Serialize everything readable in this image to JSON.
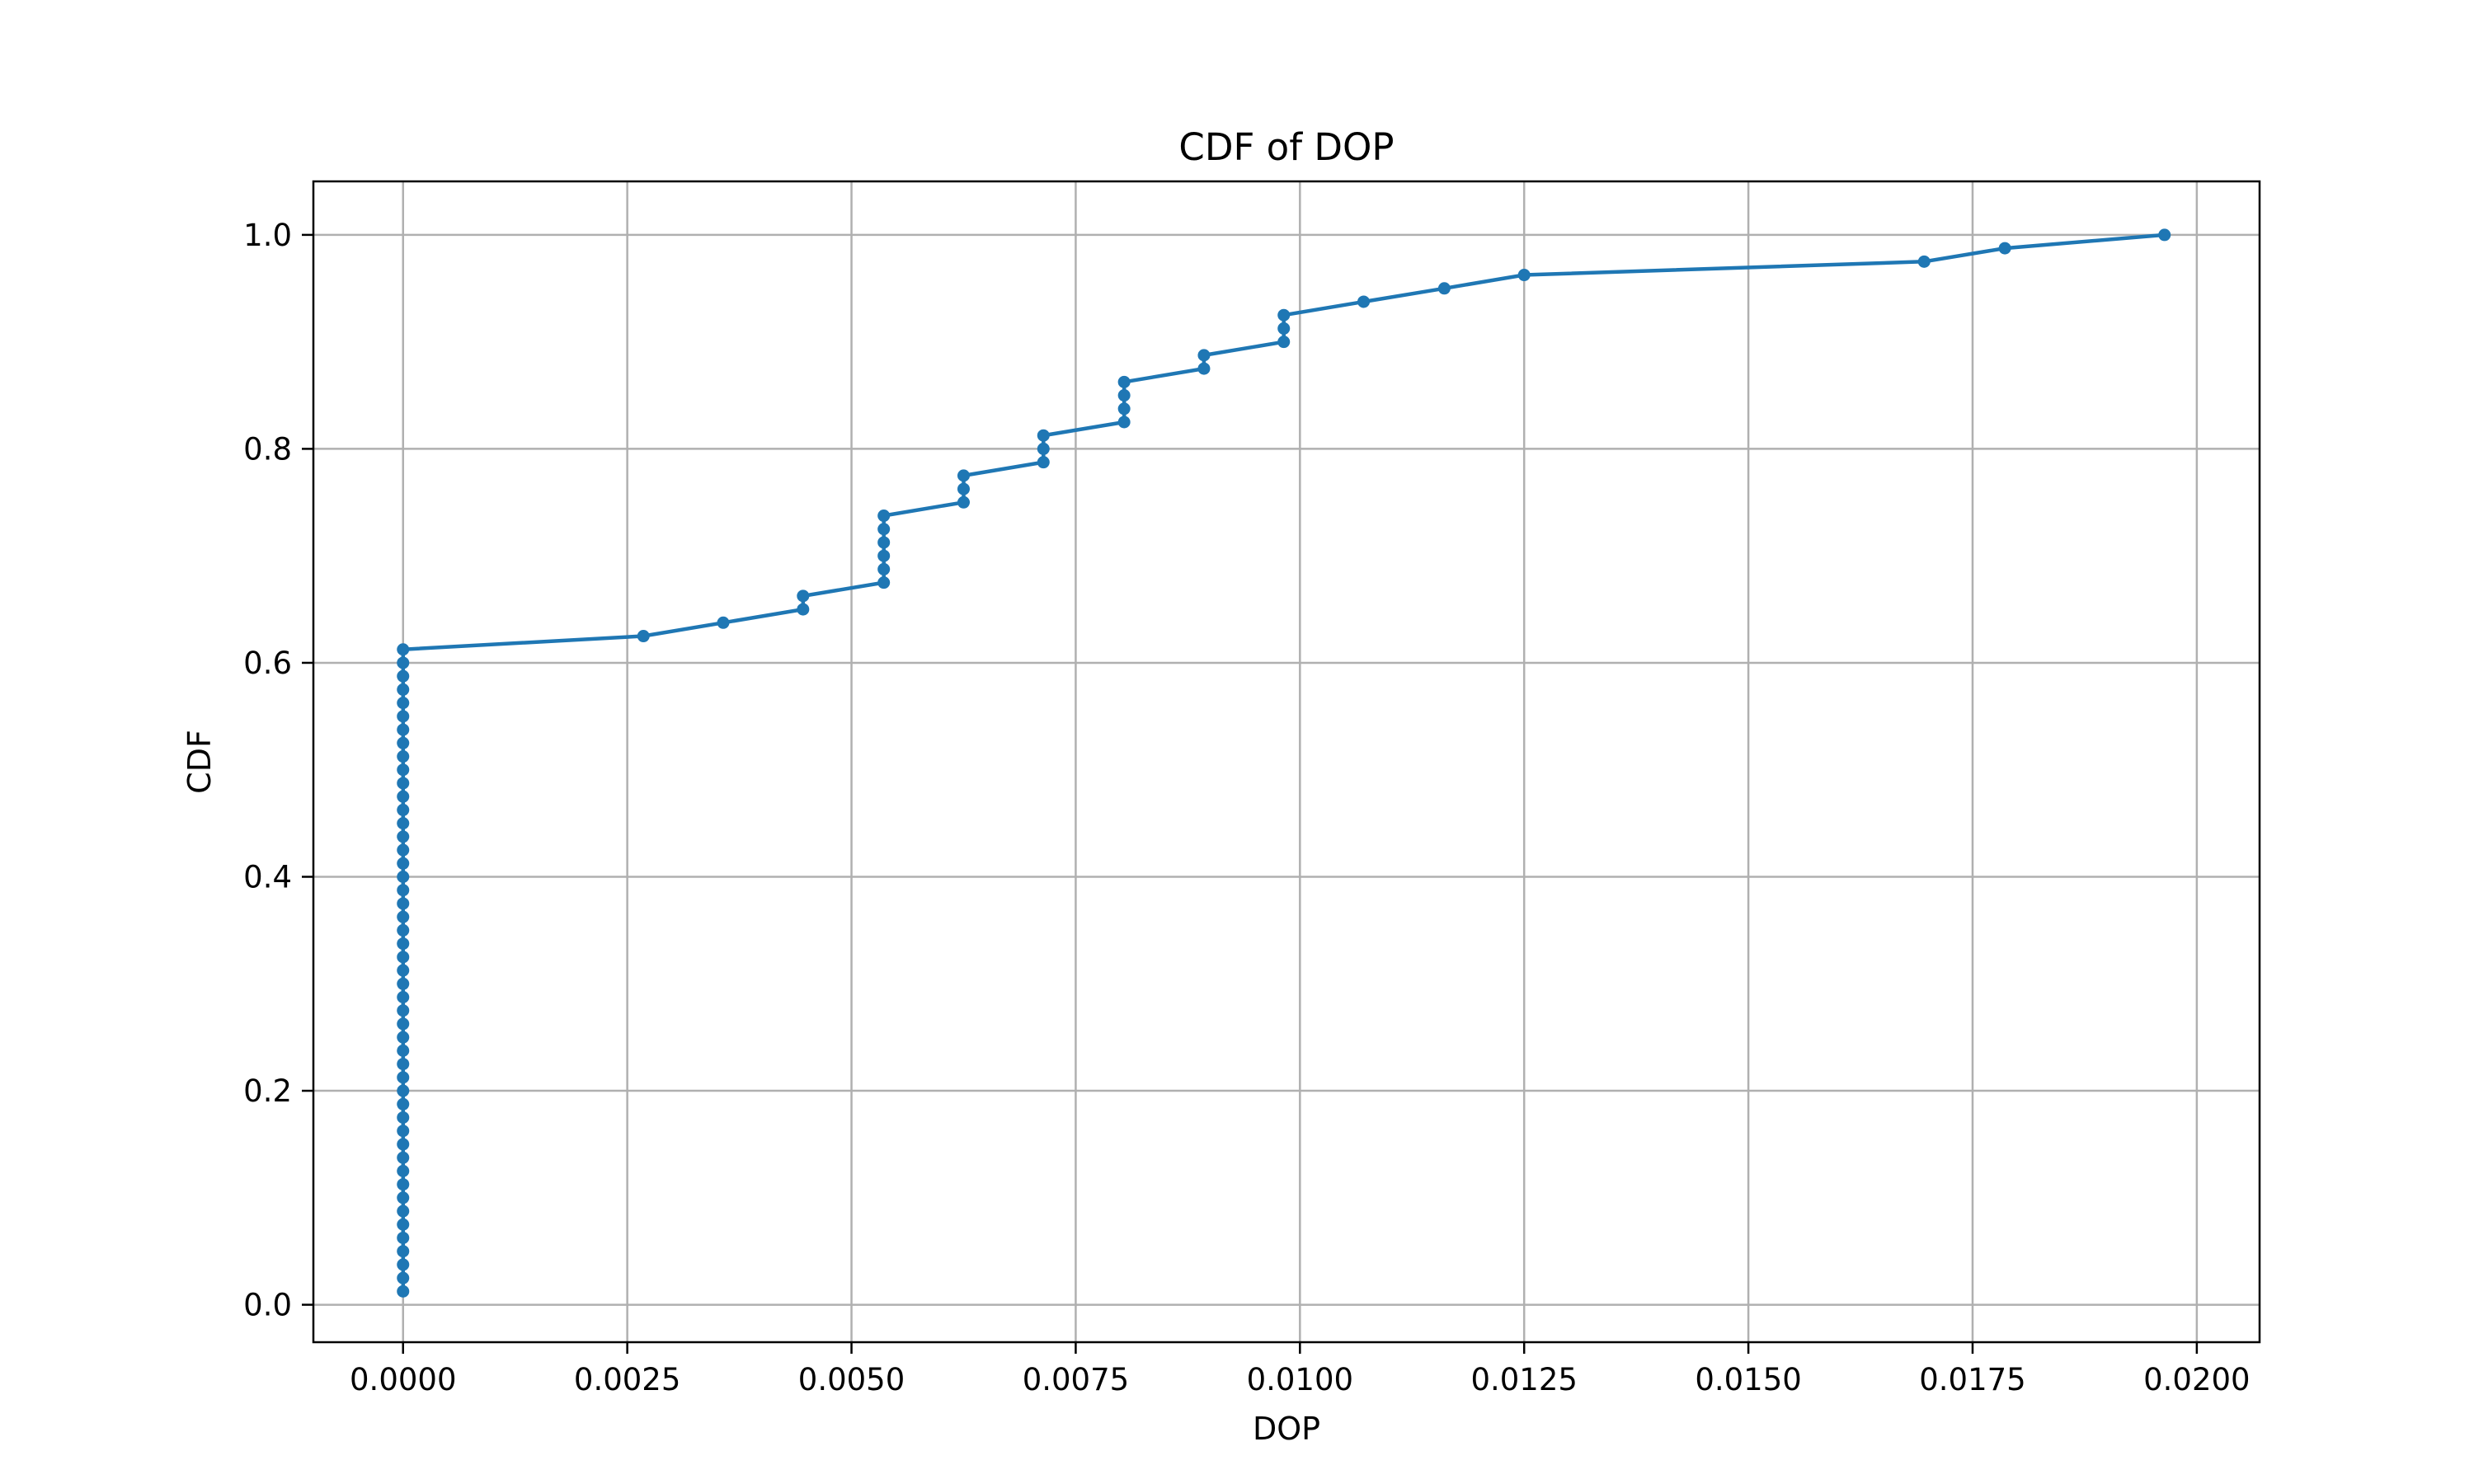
{
  "chart_data": {
    "type": "line",
    "title": "CDF of DOP",
    "xlabel": "DOP",
    "ylabel": "CDF",
    "xlim": [
      -0.001,
      0.0207
    ],
    "ylim": [
      -0.035,
      1.05
    ],
    "grid": true,
    "x_ticks": [
      0.0,
      0.0025,
      0.005,
      0.0075,
      0.01,
      0.0125,
      0.015,
      0.0175,
      0.02
    ],
    "x_tick_labels": [
      "0.0000",
      "0.0025",
      "0.0050",
      "0.0075",
      "0.0100",
      "0.0125",
      "0.0150",
      "0.0175",
      "0.0200"
    ],
    "y_ticks": [
      0.0,
      0.2,
      0.4,
      0.6,
      0.8,
      1.0
    ],
    "y_tick_labels": [
      "0.0",
      "0.2",
      "0.4",
      "0.6",
      "0.8",
      "1.0"
    ],
    "series": [
      {
        "color": "#1f77b4",
        "marker": "circle",
        "x": [
          0,
          0,
          0,
          0,
          0,
          0,
          0,
          0,
          0,
          0,
          0,
          0,
          0,
          0,
          0,
          0,
          0,
          0,
          0,
          0,
          0,
          0,
          0,
          0,
          0,
          0,
          0,
          0,
          0,
          0,
          0,
          0,
          0,
          0,
          0,
          0,
          0,
          0,
          0,
          0,
          0,
          0,
          0,
          0,
          0,
          0,
          0,
          0,
          0,
          0.00268,
          0.00357,
          0.00446,
          0.00446,
          0.00536,
          0.00536,
          0.00536,
          0.00536,
          0.00536,
          0.00536,
          0.00625,
          0.00625,
          0.00625,
          0.00714,
          0.00714,
          0.00714,
          0.00804,
          0.00804,
          0.00804,
          0.00804,
          0.00893,
          0.00893,
          0.00982,
          0.00982,
          0.00982,
          0.01071,
          0.01161,
          0.0125,
          0.01696,
          0.01786,
          0.01964
        ],
        "y": [
          0.0125,
          0.025,
          0.0375,
          0.05,
          0.0625,
          0.075,
          0.0875,
          0.1,
          0.1125,
          0.125,
          0.1375,
          0.15,
          0.1625,
          0.175,
          0.1875,
          0.2,
          0.2125,
          0.225,
          0.2375,
          0.25,
          0.2625,
          0.275,
          0.2875,
          0.3,
          0.3125,
          0.325,
          0.3375,
          0.35,
          0.3625,
          0.375,
          0.3875,
          0.4,
          0.4125,
          0.425,
          0.4375,
          0.45,
          0.4625,
          0.475,
          0.4875,
          0.5,
          0.5125,
          0.525,
          0.5375,
          0.55,
          0.5625,
          0.575,
          0.5875,
          0.6,
          0.6125,
          0.625,
          0.6375,
          0.65,
          0.6625,
          0.675,
          0.6875,
          0.7,
          0.7125,
          0.725,
          0.7375,
          0.75,
          0.7625,
          0.775,
          0.7875,
          0.8,
          0.8125,
          0.825,
          0.8375,
          0.85,
          0.8625,
          0.875,
          0.8875,
          0.9,
          0.9125,
          0.925,
          0.9375,
          0.95,
          0.9625,
          0.975,
          0.9875,
          1.0
        ]
      }
    ]
  }
}
